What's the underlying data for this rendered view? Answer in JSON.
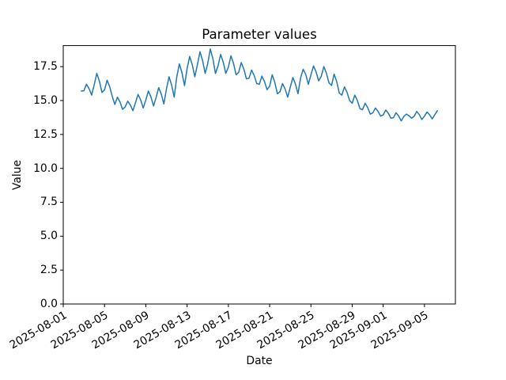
{
  "figure": {
    "background": "#ffffff",
    "axes_background": "#ffffff",
    "spine_color": "#000000",
    "tick_color": "#000000",
    "text_color": "#000000"
  },
  "chart_data": {
    "type": "line",
    "title": "Parameter values",
    "xlabel": "Date",
    "ylabel": "Value",
    "grid": false,
    "legend": "none",
    "ylim": [
      0,
      19.05
    ],
    "y_ticks": [
      0.0,
      2.5,
      5.0,
      7.5,
      10.0,
      12.5,
      15.0,
      17.5
    ],
    "y_ticklabels": [
      "0.0",
      "2.5",
      "5.0",
      "7.5",
      "10.0",
      "12.5",
      "15.0",
      "17.5"
    ],
    "x_epoch": "2025-08-01T00:00",
    "xlim_days": [
      0,
      38
    ],
    "x_ticks_days": [
      0,
      4,
      8,
      12,
      16,
      20,
      24,
      28,
      31,
      35
    ],
    "x_ticklabels": [
      "2025-08-01",
      "2025-08-05",
      "2025-08-09",
      "2025-08-13",
      "2025-08-17",
      "2025-08-21",
      "2025-08-25",
      "2025-08-29",
      "2025-09-01",
      "2025-09-05"
    ],
    "x_ticklabel_rotation_deg": 30,
    "series": [
      {
        "name": "parameter-values",
        "color": "#1f77b4",
        "line_width": 1.5,
        "marker": "none",
        "x_start": "2025-08-02T18:00",
        "x_interval_hours": 6,
        "x_start_days": 1.75,
        "x_step_days": 0.25,
        "values": [
          15.7,
          15.72,
          16.2,
          15.88,
          15.4,
          16.16,
          17.0,
          16.44,
          15.6,
          15.78,
          16.5,
          16.02,
          15.3,
          14.71,
          15.25,
          14.89,
          14.35,
          14.53,
          14.95,
          14.67,
          14.25,
          14.85,
          15.45,
          15.05,
          14.45,
          15.04,
          15.7,
          15.26,
          14.6,
          15.23,
          15.95,
          15.47,
          14.75,
          15.85,
          16.75,
          16.15,
          15.25,
          16.74,
          17.7,
          17.06,
          16.1,
          17.35,
          18.25,
          17.65,
          16.75,
          17.64,
          18.6,
          17.96,
          17.0,
          17.72,
          18.8,
          18.08,
          17.0,
          17.56,
          18.4,
          17.84,
          17.0,
          17.46,
          18.3,
          17.74,
          16.9,
          17.08,
          17.8,
          17.32,
          16.6,
          16.65,
          17.25,
          16.85,
          16.25,
          16.2,
          16.8,
          16.4,
          15.8,
          16.06,
          16.9,
          16.34,
          15.5,
          15.65,
          16.25,
          15.85,
          15.25,
          15.98,
          16.7,
          16.22,
          15.5,
          16.68,
          17.3,
          16.92,
          16.2,
          16.89,
          17.55,
          17.11,
          16.45,
          16.78,
          17.5,
          17.02,
          16.3,
          16.11,
          16.95,
          16.39,
          15.55,
          15.4,
          16.0,
          15.6,
          15.0,
          14.8,
          15.4,
          15.0,
          14.4,
          14.32,
          14.8,
          14.48,
          14.0,
          14.09,
          14.45,
          14.21,
          13.85,
          13.94,
          14.3,
          14.06,
          13.7,
          13.74,
          14.1,
          13.86,
          13.5,
          13.82,
          14.0,
          13.88,
          13.7,
          13.84,
          14.2,
          13.96,
          13.6,
          13.85,
          14.15,
          13.95,
          13.65,
          13.95,
          14.25
        ]
      }
    ]
  }
}
